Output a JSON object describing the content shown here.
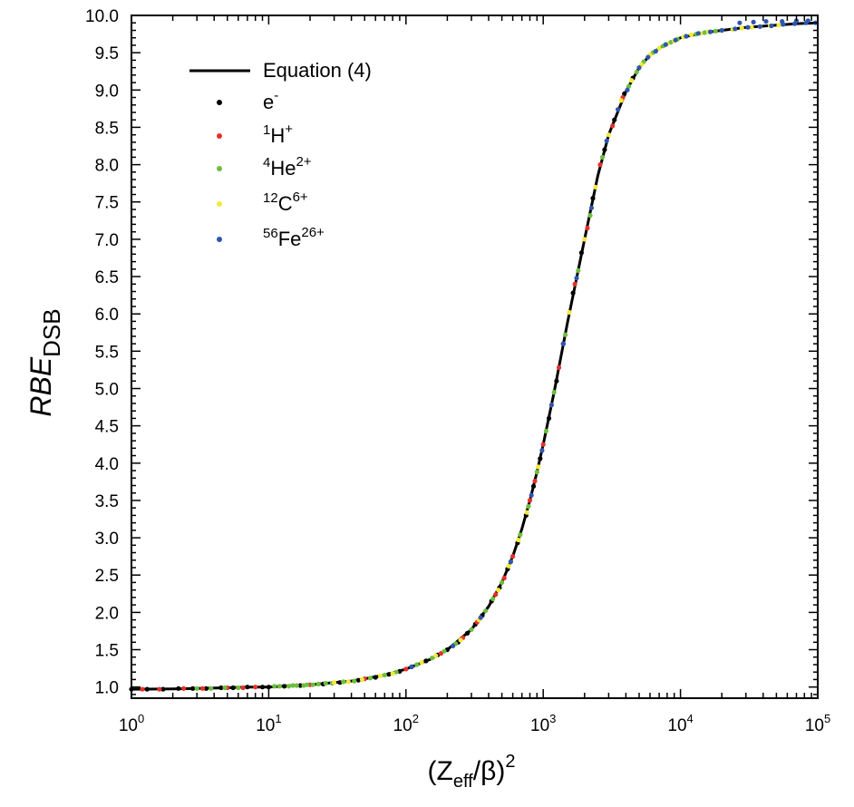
{
  "chart_data": {
    "type": "scatter",
    "title": "",
    "xlabel": {
      "base": "(Z",
      "sub": "eff",
      "mid": "/β)",
      "sup": "2"
    },
    "ylabel": {
      "italic": "RBE",
      "sub": "DSB"
    },
    "x_scale": "log",
    "xlim": [
      1,
      100000
    ],
    "ylim": [
      0.85,
      10.0
    ],
    "x_ticks": [
      {
        "base": "10",
        "exp": "0"
      },
      {
        "base": "10",
        "exp": "1"
      },
      {
        "base": "10",
        "exp": "2"
      },
      {
        "base": "10",
        "exp": "3"
      },
      {
        "base": "10",
        "exp": "4"
      },
      {
        "base": "10",
        "exp": "5"
      }
    ],
    "y_ticks": [
      "1.0",
      "1.5",
      "2.0",
      "2.5",
      "3.0",
      "3.5",
      "4.0",
      "4.5",
      "5.0",
      "5.5",
      "6.0",
      "6.5",
      "7.0",
      "7.5",
      "8.0",
      "8.5",
      "9.0",
      "9.5",
      "10.0"
    ],
    "grid": false,
    "legend_position": "top-left",
    "legend": [
      {
        "kind": "line",
        "label": {
          "pre": "",
          "main": "Equation (4)",
          "sup": ""
        },
        "color": "#000000"
      },
      {
        "kind": "point",
        "label": {
          "pre": "",
          "main": "e",
          "sup": "-"
        },
        "color": "#000000"
      },
      {
        "kind": "point",
        "label": {
          "pre": "1",
          "main": "H",
          "sup": "+"
        },
        "color": "#e8302a"
      },
      {
        "kind": "point",
        "label": {
          "pre": "4",
          "main": "He",
          "sup": "2+"
        },
        "color": "#6cbf3e"
      },
      {
        "kind": "point",
        "label": {
          "pre": "12",
          "main": "C",
          "sup": "6+"
        },
        "color": "#f2ea3a"
      },
      {
        "kind": "point",
        "label": {
          "pre": "56",
          "main": "Fe",
          "sup": "26+"
        },
        "color": "#2f56b0"
      }
    ],
    "curve": {
      "name": "Equation (4)",
      "color": "#000000",
      "points": [
        [
          1,
          0.97
        ],
        [
          2,
          0.975
        ],
        [
          3,
          0.98
        ],
        [
          5,
          0.99
        ],
        [
          7,
          1.0
        ],
        [
          10,
          1.0
        ],
        [
          15,
          1.02
        ],
        [
          20,
          1.03
        ],
        [
          30,
          1.06
        ],
        [
          40,
          1.08
        ],
        [
          50,
          1.11
        ],
        [
          70,
          1.16
        ],
        [
          100,
          1.24
        ],
        [
          150,
          1.37
        ],
        [
          200,
          1.5
        ],
        [
          300,
          1.77
        ],
        [
          400,
          2.08
        ],
        [
          500,
          2.4
        ],
        [
          600,
          2.75
        ],
        [
          700,
          3.12
        ],
        [
          800,
          3.5
        ],
        [
          900,
          3.88
        ],
        [
          1000,
          4.25
        ],
        [
          1200,
          4.95
        ],
        [
          1500,
          5.88
        ],
        [
          2000,
          7.0
        ],
        [
          2500,
          7.85
        ],
        [
          3000,
          8.4
        ],
        [
          4000,
          8.98
        ],
        [
          5000,
          9.3
        ],
        [
          6000,
          9.47
        ],
        [
          7000,
          9.56
        ],
        [
          8000,
          9.62
        ],
        [
          10000,
          9.7
        ],
        [
          15000,
          9.77
        ],
        [
          20000,
          9.8
        ],
        [
          30000,
          9.84
        ],
        [
          50000,
          9.87
        ],
        [
          70000,
          9.89
        ],
        [
          100000,
          9.9
        ]
      ]
    },
    "series": [
      {
        "name": "e-",
        "color": "#000000",
        "points": [
          [
            1,
            0.97
          ],
          [
            1.3,
            0.97
          ],
          [
            1.7,
            0.97
          ],
          [
            2.2,
            0.98
          ],
          [
            2.8,
            0.98
          ],
          [
            3.5,
            0.98
          ],
          [
            4.5,
            0.99
          ],
          [
            5.5,
            0.99
          ],
          [
            7,
            1.0
          ],
          [
            9,
            1.0
          ],
          [
            10,
            1.0
          ],
          [
            13,
            1.01
          ],
          [
            17,
            1.02
          ],
          [
            25,
            1.04
          ],
          [
            33,
            1.06
          ],
          [
            45,
            1.09
          ],
          [
            60,
            1.13
          ],
          [
            75,
            1.17
          ],
          [
            90,
            1.21
          ],
          [
            110,
            1.27
          ],
          [
            140,
            1.35
          ],
          [
            170,
            1.43
          ],
          [
            200,
            1.5
          ],
          [
            240,
            1.6
          ],
          [
            280,
            1.72
          ],
          [
            320,
            1.84
          ],
          [
            360,
            1.96
          ],
          [
            420,
            2.15
          ],
          [
            480,
            2.33
          ],
          [
            550,
            2.58
          ],
          [
            650,
            2.93
          ],
          [
            750,
            3.3
          ],
          [
            850,
            3.69
          ],
          [
            950,
            4.06
          ],
          [
            1100,
            4.6
          ],
          [
            1250,
            5.1
          ],
          [
            1400,
            5.6
          ],
          [
            1650,
            6.28
          ],
          [
            1900,
            6.82
          ],
          [
            2300,
            7.55
          ],
          [
            2800,
            8.2
          ],
          [
            3300,
            8.6
          ],
          [
            3900,
            8.95
          ],
          [
            4500,
            9.16
          ]
        ]
      },
      {
        "name": "1H+",
        "color": "#e8302a",
        "points": [
          [
            1.2,
            0.97
          ],
          [
            1.6,
            0.97
          ],
          [
            2.4,
            0.98
          ],
          [
            3.3,
            0.98
          ],
          [
            5,
            0.99
          ],
          [
            6.5,
            0.99
          ],
          [
            8,
            1.0
          ],
          [
            20,
            1.03
          ],
          [
            50,
            1.11
          ],
          [
            100,
            1.24
          ],
          [
            180,
            1.45
          ],
          [
            260,
            1.66
          ],
          [
            330,
            1.87
          ],
          [
            450,
            2.24
          ],
          [
            520,
            2.46
          ],
          [
            600,
            2.75
          ],
          [
            800,
            3.5
          ],
          [
            870,
            3.76
          ],
          [
            1000,
            4.25
          ],
          [
            1300,
            5.28
          ],
          [
            1700,
            6.4
          ],
          [
            2100,
            7.15
          ],
          [
            2600,
            8.0
          ],
          [
            3200,
            8.52
          ],
          [
            3800,
            8.9
          ]
        ]
      },
      {
        "name": "4He2+",
        "color": "#6cbf3e",
        "points": [
          [
            3,
            0.98
          ],
          [
            3.8,
            0.98
          ],
          [
            4.8,
            0.99
          ],
          [
            6,
            0.99
          ],
          [
            11,
            1.01
          ],
          [
            12,
            1.01
          ],
          [
            14,
            1.01
          ],
          [
            15,
            1.02
          ],
          [
            16,
            1.02
          ],
          [
            18,
            1.02
          ],
          [
            19,
            1.03
          ],
          [
            21,
            1.03
          ],
          [
            23,
            1.04
          ],
          [
            26,
            1.05
          ],
          [
            29,
            1.05
          ],
          [
            35,
            1.07
          ],
          [
            42,
            1.08
          ],
          [
            55,
            1.12
          ],
          [
            70,
            1.16
          ],
          [
            85,
            1.2
          ],
          [
            120,
            1.3
          ],
          [
            155,
            1.39
          ],
          [
            190,
            1.48
          ],
          [
            230,
            1.58
          ],
          [
            300,
            1.77
          ],
          [
            380,
            2.02
          ],
          [
            430,
            2.18
          ],
          [
            500,
            2.4
          ],
          [
            580,
            2.68
          ],
          [
            680,
            3.04
          ],
          [
            780,
            3.42
          ],
          [
            900,
            3.88
          ],
          [
            1050,
            4.43
          ],
          [
            1200,
            4.95
          ],
          [
            1450,
            5.72
          ],
          [
            1800,
            6.58
          ],
          [
            2200,
            7.32
          ],
          [
            2700,
            8.1
          ],
          [
            3500,
            8.74
          ],
          [
            4200,
            9.05
          ],
          [
            4800,
            9.24
          ],
          [
            5400,
            9.38
          ],
          [
            6300,
            9.5
          ],
          [
            7500,
            9.59
          ],
          [
            8500,
            9.64
          ],
          [
            9500,
            9.68
          ],
          [
            11000,
            9.72
          ],
          [
            13000,
            9.75
          ],
          [
            15000,
            9.77
          ],
          [
            18000,
            9.79
          ]
        ]
      },
      {
        "name": "12C6+",
        "color": "#f2ea3a",
        "points": [
          [
            30,
            1.06
          ],
          [
            38,
            1.07
          ],
          [
            48,
            1.1
          ],
          [
            65,
            1.15
          ],
          [
            80,
            1.18
          ],
          [
            130,
            1.33
          ],
          [
            165,
            1.42
          ],
          [
            250,
            1.63
          ],
          [
            340,
            1.9
          ],
          [
            470,
            2.3
          ],
          [
            560,
            2.62
          ],
          [
            660,
            2.97
          ],
          [
            760,
            3.34
          ],
          [
            920,
            3.95
          ],
          [
            1150,
            4.78
          ],
          [
            1550,
            6.02
          ],
          [
            2000,
            7.0
          ],
          [
            2400,
            7.7
          ],
          [
            3000,
            8.4
          ],
          [
            3700,
            8.86
          ],
          [
            4400,
            9.13
          ],
          [
            5200,
            9.34
          ],
          [
            6000,
            9.47
          ],
          [
            7000,
            9.56
          ],
          [
            8000,
            9.62
          ],
          [
            9000,
            9.66
          ],
          [
            10500,
            9.71
          ],
          [
            12000,
            9.74
          ],
          [
            14000,
            9.76
          ],
          [
            16000,
            9.78
          ],
          [
            20000,
            9.8
          ],
          [
            24000,
            9.81
          ],
          [
            28000,
            9.83
          ],
          [
            33000,
            9.84
          ],
          [
            38000,
            9.85
          ],
          [
            45000,
            9.86
          ],
          [
            52000,
            9.87
          ]
        ]
      },
      {
        "name": "56Fe26+",
        "color": "#2f56b0",
        "points": [
          [
            110,
            1.27
          ],
          [
            220,
            1.55
          ],
          [
            350,
            1.93
          ],
          [
            580,
            2.68
          ],
          [
            820,
            3.57
          ],
          [
            980,
            4.17
          ],
          [
            1150,
            4.78
          ],
          [
            1400,
            5.6
          ],
          [
            1750,
            6.48
          ],
          [
            2250,
            7.42
          ],
          [
            2900,
            8.32
          ],
          [
            3500,
            8.74
          ],
          [
            4100,
            9.0
          ],
          [
            5000,
            9.3
          ],
          [
            5800,
            9.44
          ],
          [
            6600,
            9.52
          ],
          [
            7800,
            9.61
          ],
          [
            9200,
            9.67
          ],
          [
            11000,
            9.72
          ],
          [
            13500,
            9.76
          ],
          [
            16500,
            9.78
          ],
          [
            20000,
            9.8
          ],
          [
            25000,
            9.82
          ],
          [
            31000,
            9.84
          ],
          [
            38000,
            9.85
          ],
          [
            46000,
            9.86
          ],
          [
            56000,
            9.88
          ],
          [
            68000,
            9.89
          ],
          [
            82000,
            9.9
          ],
          [
            96000,
            9.9
          ],
          [
            27000,
            9.9
          ],
          [
            34000,
            9.91
          ],
          [
            42000,
            9.92
          ],
          [
            55000,
            9.92
          ],
          [
            70000,
            9.93
          ],
          [
            85000,
            9.93
          ]
        ]
      }
    ]
  }
}
